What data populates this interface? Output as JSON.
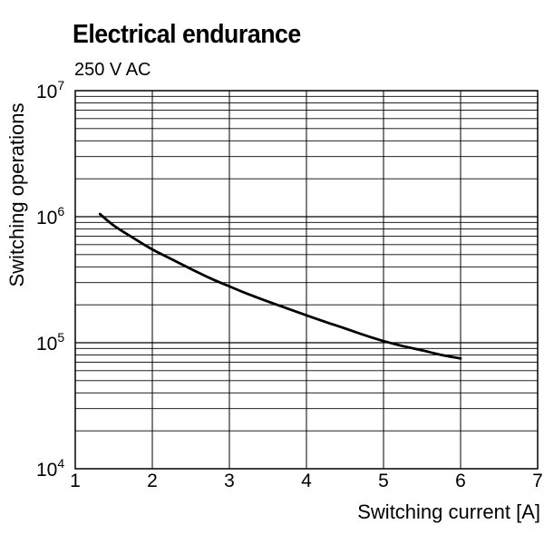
{
  "chart_data": {
    "type": "line",
    "title": "Electrical endurance",
    "subtitle": "250 V AC",
    "xlabel": "Switching current [A]",
    "ylabel": "Switching operations",
    "xlim": [
      1,
      7
    ],
    "ylim": [
      10000,
      10000000
    ],
    "yscale": "log",
    "grid": true,
    "x_ticks": [
      "1",
      "2",
      "3",
      "4",
      "5",
      "6",
      "7"
    ],
    "y_ticks": [
      {
        "base": "10",
        "exp": "4"
      },
      {
        "base": "10",
        "exp": "5"
      },
      {
        "base": "10",
        "exp": "6"
      },
      {
        "base": "10",
        "exp": "7"
      }
    ],
    "series": [
      {
        "color": "#000000",
        "x": [
          1.32,
          1.5,
          1.75,
          2.0,
          2.25,
          2.5,
          2.75,
          3.0,
          3.25,
          3.5,
          3.75,
          4.0,
          4.25,
          4.5,
          4.75,
          5.0,
          5.25,
          5.5,
          5.75,
          6.0
        ],
        "y": [
          1050000,
          850000,
          680000,
          550000,
          460000,
          385000,
          325000,
          280000,
          242000,
          212000,
          187000,
          165000,
          146000,
          130000,
          115000,
          103000,
          94000,
          87000,
          80000,
          75000
        ]
      }
    ]
  }
}
